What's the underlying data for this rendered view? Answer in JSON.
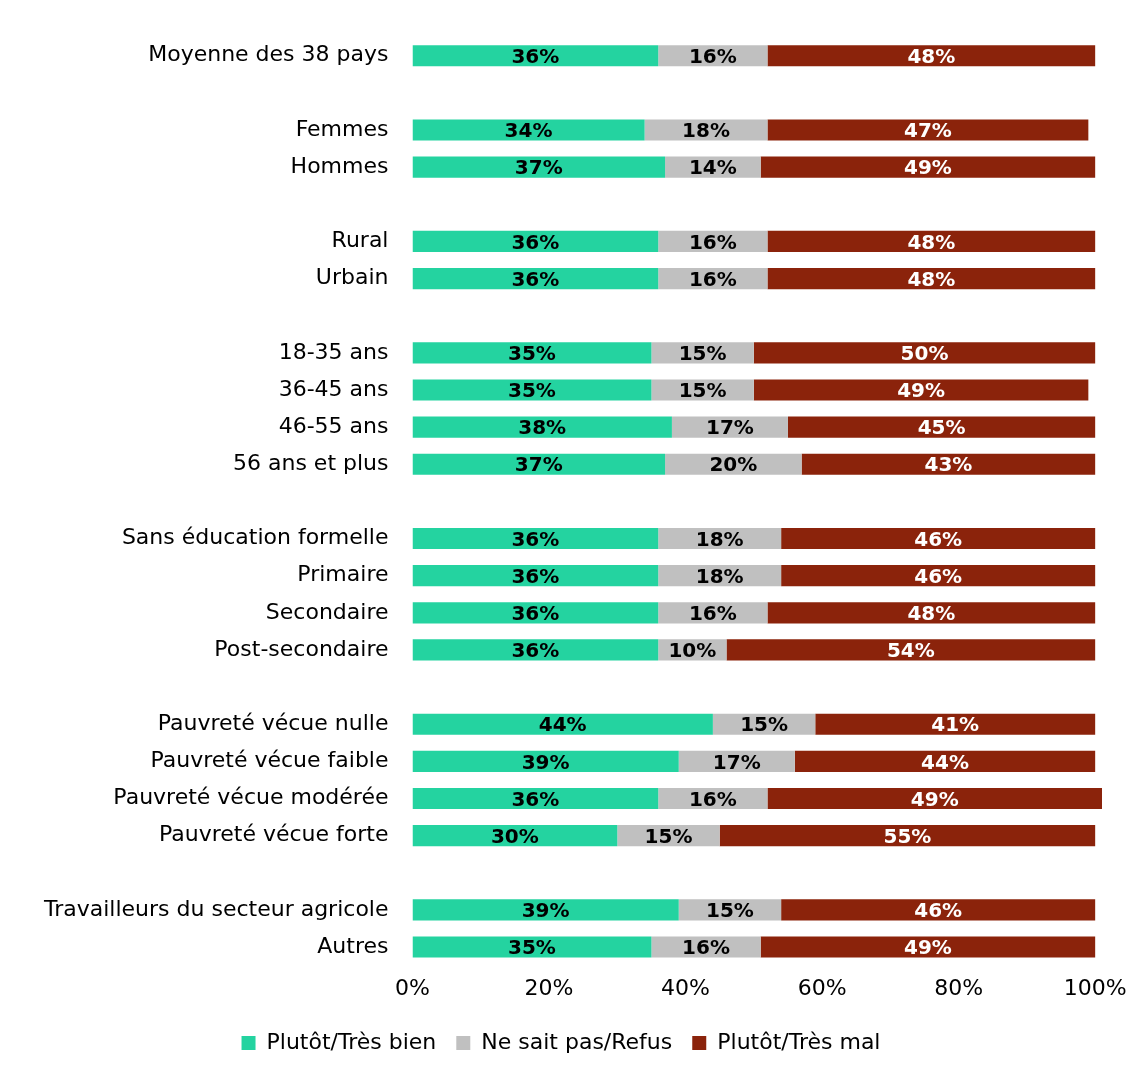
{
  "chart_data": {
    "type": "bar",
    "orientation": "horizontal",
    "stacked": true,
    "legend": "bottom",
    "grid": false,
    "categories": [
      "Moyenne des 38 pays",
      null,
      "Femmes",
      "Hommes",
      null,
      "Rural",
      "Urbain",
      null,
      "18-35 ans",
      "36-45 ans",
      "46-55 ans",
      "56 ans et plus",
      null,
      "Sans éducation formelle",
      "Primaire",
      "Secondaire",
      "Post-secondaire",
      null,
      "Pauvreté vécue nulle",
      "Pauvreté vécue faible",
      "Pauvreté vécue modérée",
      "Pauvreté vécue forte",
      null,
      "Travailleurs du secteur agricole",
      "Autres"
    ],
    "series": [
      {
        "name": "Plutôt/Très bien",
        "color": "#24d3a0",
        "values": [
          36,
          null,
          34,
          37,
          null,
          36,
          36,
          null,
          35,
          35,
          38,
          37,
          null,
          36,
          36,
          36,
          36,
          null,
          44,
          39,
          36,
          30,
          null,
          39,
          35
        ],
        "value_labels": [
          "36%",
          null,
          "34%",
          "37%",
          null,
          "36%",
          "36%",
          null,
          "35%",
          "35%",
          "38%",
          "37%",
          null,
          "36%",
          "36%",
          "36%",
          "36%",
          null,
          "44%",
          "39%",
          "36%",
          "30%",
          null,
          "39%",
          "35%"
        ]
      },
      {
        "name": "Ne sait pas/Refus",
        "color": "#c0c0c0",
        "values": [
          16,
          null,
          18,
          14,
          null,
          16,
          16,
          null,
          15,
          15,
          17,
          20,
          null,
          18,
          18,
          16,
          10,
          null,
          15,
          17,
          16,
          15,
          null,
          15,
          16
        ],
        "value_labels": [
          "16%",
          null,
          "18%",
          "14%",
          null,
          "16%",
          "16%",
          null,
          "15%",
          "15%",
          "17%",
          "20%",
          null,
          "18%",
          "18%",
          "16%",
          "10%",
          null,
          "15%",
          "17%",
          "16%",
          "15%",
          null,
          "15%",
          "16%"
        ]
      },
      {
        "name": "Plutôt/Très mal",
        "color": "#8b230b",
        "values": [
          48,
          null,
          47,
          49,
          null,
          48,
          48,
          null,
          50,
          49,
          45,
          43,
          null,
          46,
          46,
          48,
          54,
          null,
          41,
          44,
          49,
          55,
          null,
          46,
          49
        ],
        "value_labels": [
          "48%",
          null,
          "47%",
          "49%",
          null,
          "48%",
          "48%",
          null,
          "50%",
          "49%",
          "45%",
          "43%",
          null,
          "46%",
          "46%",
          "48%",
          "54%",
          null,
          "41%",
          "44%",
          "49%",
          "55%",
          null,
          "46%",
          "49%"
        ]
      }
    ],
    "xlim": [
      0,
      101
    ],
    "xticks": [
      {
        "value": 0,
        "label": "0%"
      },
      {
        "value": 20,
        "label": "20%"
      },
      {
        "value": 40,
        "label": "40%"
      },
      {
        "value": 60,
        "label": "60%"
      },
      {
        "value": 80,
        "label": "80%"
      },
      {
        "value": 100,
        "label": "100%"
      }
    ]
  }
}
